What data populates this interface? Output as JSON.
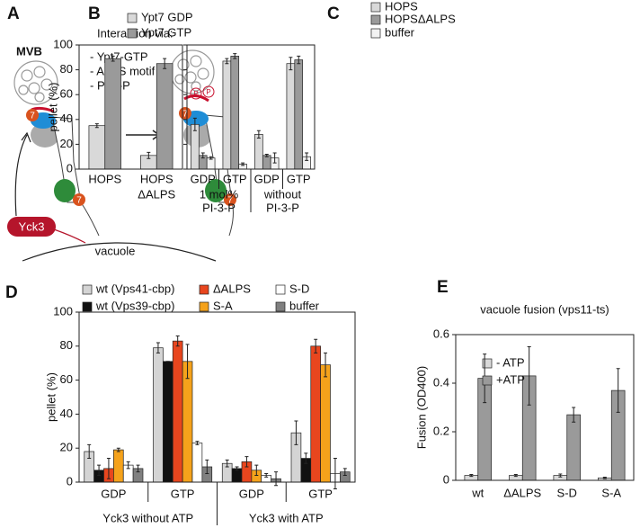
{
  "diagram": {
    "panel": "A",
    "heading": "Interaction via:",
    "items": [
      "- Ypt7-GTP",
      "- ALPS motif",
      "- PI-3-P"
    ],
    "mvb": "MVB",
    "kinase": "Yck3",
    "membrane": "vacuole",
    "rab": "7",
    "phospho": "P"
  },
  "chart_data": [
    {
      "type": "bar",
      "panel": "B",
      "ylabel": "pellet (%)",
      "categories": [
        [
          "HOPS"
        ],
        [
          "HOPS",
          "ΔALPS"
        ]
      ],
      "series": [
        {
          "name": "Ypt7 GDP",
          "color": "#d9d9d9",
          "values": [
            35,
            11
          ],
          "errors": [
            1.5,
            2.5
          ]
        },
        {
          "name": "Ypt7 GTP",
          "color": "#9a9a9a",
          "values": [
            89,
            85
          ],
          "errors": [
            2,
            4
          ]
        }
      ],
      "ylim": [
        0,
        100
      ],
      "yticks": [
        0,
        20,
        40,
        60,
        80,
        100
      ]
    },
    {
      "type": "bar",
      "panel": "C",
      "categories": [
        "GDP",
        "GTP",
        "GDP",
        "GTP"
      ],
      "groups": [
        [
          "1 mol%",
          "PI-3-P"
        ],
        [
          "without",
          "PI-3-P"
        ]
      ],
      "series": [
        {
          "name": "HOPS",
          "color": "#d9d9d9",
          "values": [
            36,
            87,
            28,
            85
          ],
          "errors": [
            5,
            2,
            3,
            5
          ]
        },
        {
          "name": "HOPSΔALPS",
          "color": "#9a9a9a",
          "values": [
            11,
            91,
            11,
            88
          ],
          "errors": [
            2,
            2,
            1,
            3
          ]
        },
        {
          "name": "buffer",
          "color": "#f2f2f2",
          "values": [
            9,
            4,
            9,
            10
          ],
          "errors": [
            1,
            1,
            4,
            3
          ]
        }
      ],
      "ylim": [
        0,
        100
      ],
      "yticks": [
        0,
        20,
        40,
        60,
        80,
        100
      ]
    },
    {
      "type": "bar",
      "panel": "D",
      "ylabel": "pellet (%)",
      "categories": [
        "GDP",
        "GTP",
        "GDP",
        "GTP"
      ],
      "groups": [
        [
          "Yck3 without ATP"
        ],
        [
          "Yck3 with ATP"
        ]
      ],
      "series": [
        {
          "name": "wt (Vps41-cbp)",
          "color": "#d4d4d4",
          "values": [
            18,
            79,
            11,
            29
          ],
          "errors": [
            4,
            3,
            2,
            7
          ]
        },
        {
          "name": "wt (Vps39-cbp)",
          "color": "#111111",
          "values": [
            7,
            71,
            8,
            14
          ],
          "errors": [
            3,
            0,
            1,
            3
          ]
        },
        {
          "name": "ΔALPS",
          "color": "#e8461e",
          "values": [
            8,
            83,
            12,
            80
          ],
          "errors": [
            6,
            3,
            3,
            4
          ]
        },
        {
          "name": "S-A",
          "color": "#f5a21b",
          "values": [
            19,
            71,
            7,
            69
          ],
          "errors": [
            1,
            10,
            3,
            7
          ]
        },
        {
          "name": "S-D",
          "color": "#ffffff",
          "values": [
            10,
            23,
            4,
            5
          ],
          "errors": [
            2,
            1,
            1,
            9
          ]
        },
        {
          "name": "buffer",
          "color": "#808080",
          "values": [
            8,
            9,
            2,
            6
          ],
          "errors": [
            2,
            4,
            4,
            2
          ]
        }
      ],
      "ylim": [
        0,
        100
      ],
      "yticks": [
        0,
        20,
        40,
        60,
        80,
        100
      ]
    },
    {
      "type": "bar",
      "panel": "E",
      "title": "vacuole fusion (vps11-ts)",
      "ylabel": "Fusion (OD400)",
      "categories": [
        "wt",
        "ΔALPS",
        "S-D",
        "S-A"
      ],
      "series": [
        {
          "name": "- ATP",
          "color": "#d9d9d9",
          "values": [
            0.02,
            0.02,
            0.02,
            0.01
          ],
          "errors": [
            0.004,
            0.004,
            0.006,
            0.003
          ]
        },
        {
          "name": "+ATP",
          "color": "#9a9a9a",
          "values": [
            0.42,
            0.43,
            0.27,
            0.37
          ],
          "errors": [
            0.1,
            0.12,
            0.03,
            0.09
          ]
        }
      ],
      "ylim": [
        0,
        0.6
      ],
      "yticks": [
        0,
        0.2,
        0.4,
        0.6
      ]
    }
  ]
}
